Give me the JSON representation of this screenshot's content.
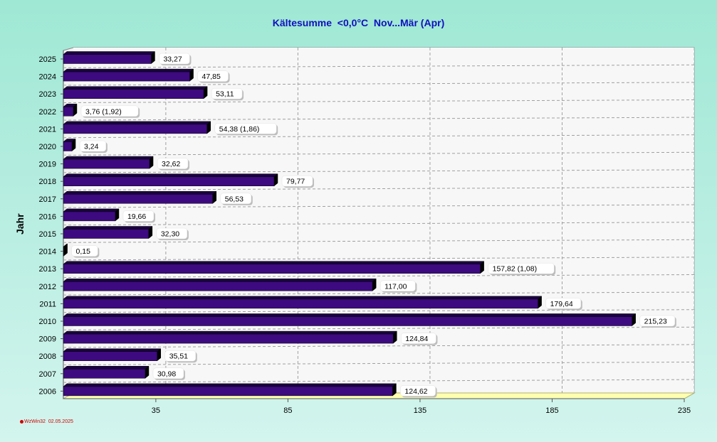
{
  "chart_data": {
    "type": "bar",
    "orientation": "horizontal",
    "title": "Kältesumme  <0,0°C  Nov...Mär (Apr)",
    "ylabel": "Jahr",
    "xlabel": "",
    "categories": [
      "2025",
      "2024",
      "2023",
      "2022",
      "2021",
      "2020",
      "2019",
      "2018",
      "2017",
      "2016",
      "2015",
      "2014",
      "2013",
      "2012",
      "2011",
      "2010",
      "2009",
      "2008",
      "2007",
      "2006"
    ],
    "values": [
      33.27,
      47.85,
      53.11,
      3.76,
      54.38,
      3.24,
      32.62,
      79.77,
      56.53,
      19.66,
      32.3,
      0.15,
      157.82,
      117.0,
      179.64,
      215.23,
      124.84,
      35.51,
      30.98,
      124.62
    ],
    "value_labels": [
      "33,27",
      "47,85",
      "53,11",
      "3,76 (1,92)",
      "54,38 (1,86)",
      "3,24",
      "32,62",
      "79,77",
      "56,53",
      "19,66",
      "32,30",
      "0,15",
      "157,82 (1,08)",
      "117,00",
      "179,64",
      "215,23",
      "124,84",
      "35,51",
      "30,98",
      "124,62"
    ],
    "x_ticks": [
      35,
      85,
      135,
      185,
      235
    ],
    "x_tick_labels": [
      "35",
      "85",
      "135",
      "185",
      "235"
    ],
    "xlim": [
      0,
      235
    ],
    "grid": true,
    "colors": {
      "bar": "#3d0a80",
      "bar_dark": "#1a0340",
      "bar_top": "#5a2aa0",
      "grid": "#a0a0a0",
      "plot_bg": "#efefef",
      "title": "#1010c0",
      "floor": "#ffffb0"
    }
  },
  "footer": {
    "text": "WzWin32  02.05.2025",
    "icon": "red-dot-icon"
  }
}
